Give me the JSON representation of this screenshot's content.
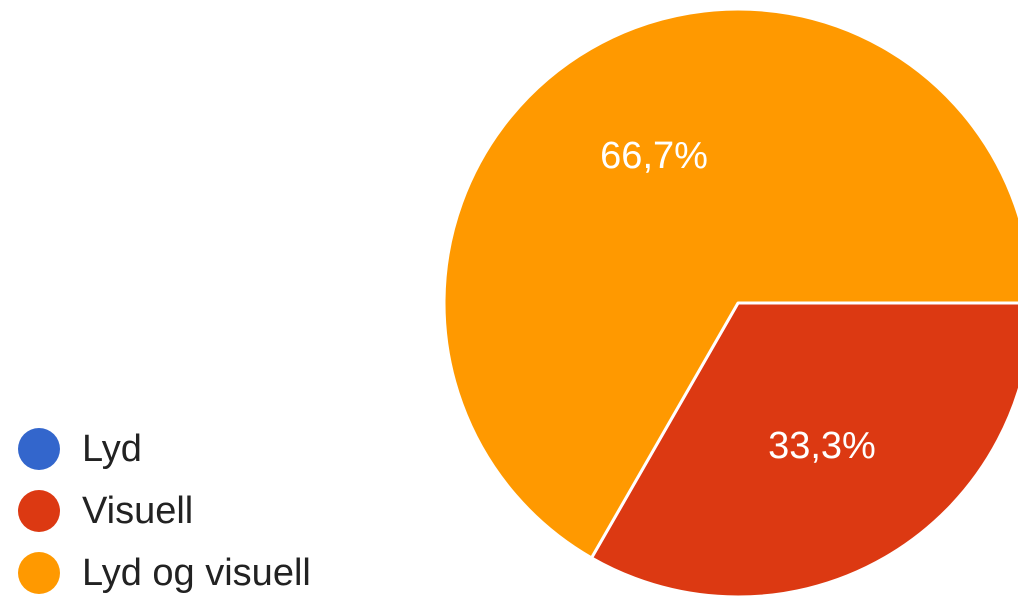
{
  "chart_data": {
    "type": "pie",
    "title": "",
    "legend_position": "bottom-left",
    "slices": [
      {
        "label": "Lyd",
        "value": 0,
        "display": "",
        "color": "#3366CC"
      },
      {
        "label": "Visuell",
        "value": 33.3,
        "display": "33,3%",
        "color": "#DC3912"
      },
      {
        "label": "Lyd og visuell",
        "value": 66.7,
        "display": "66,7%",
        "color": "#FF9900"
      }
    ]
  }
}
